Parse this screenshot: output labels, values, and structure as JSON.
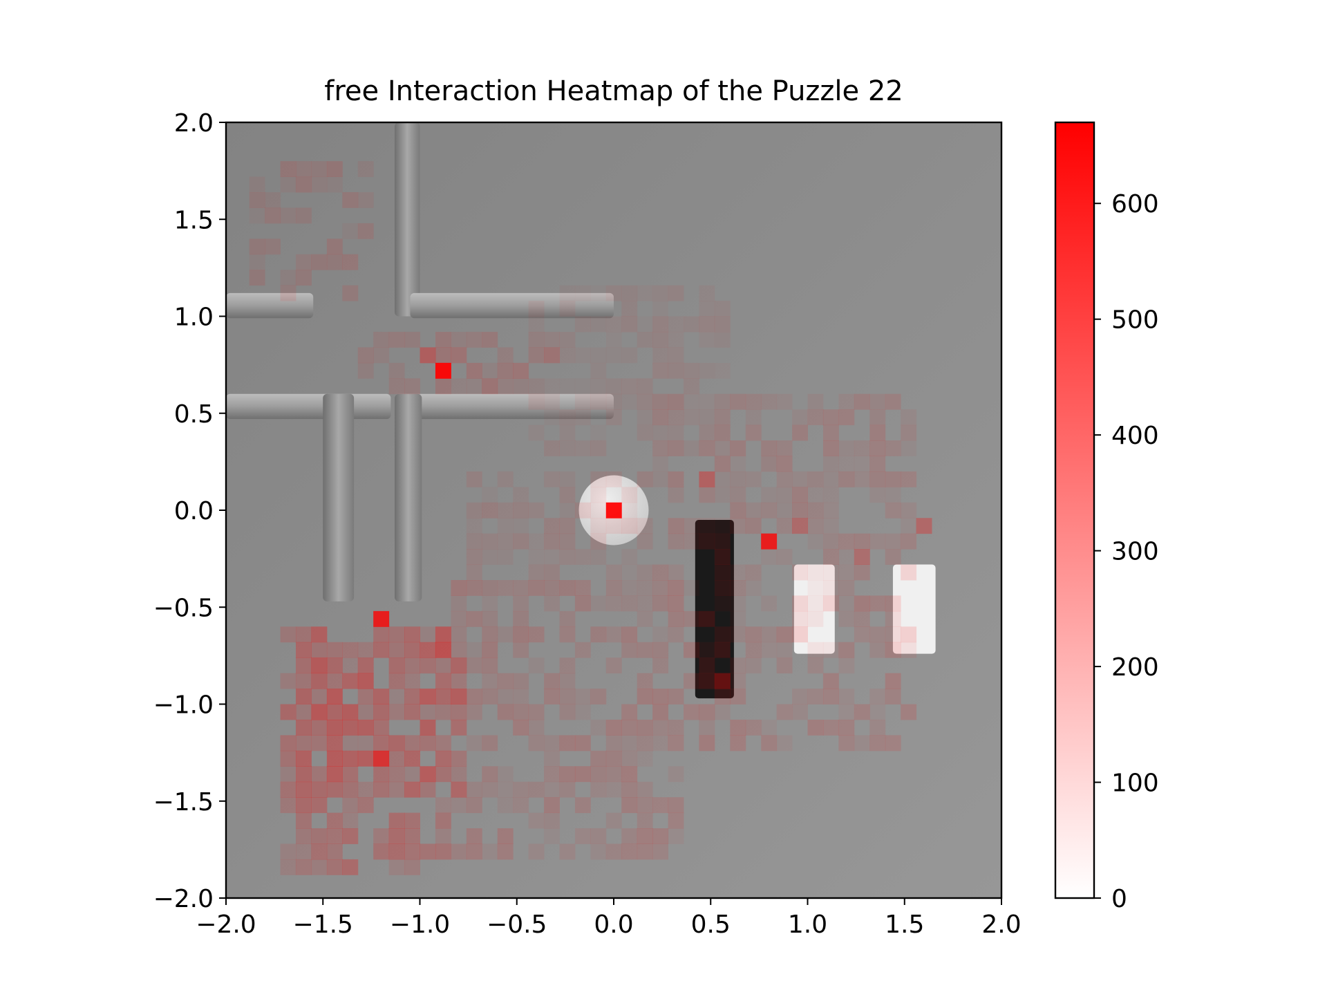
{
  "chart_data": {
    "type": "heatmap",
    "title": "free Interaction Heatmap of the Puzzle 22",
    "xlabel": "",
    "ylabel": "",
    "xlim": [
      -2.0,
      2.0
    ],
    "ylim": [
      -2.0,
      2.0
    ],
    "x_ticks": [
      "−2.0",
      "−1.5",
      "−1.0",
      "−0.5",
      "0.0",
      "0.5",
      "1.0",
      "1.5",
      "2.0"
    ],
    "y_ticks": [
      "2.0",
      "1.5",
      "1.0",
      "0.5",
      "0.0",
      "−0.5",
      "−1.0",
      "−1.5",
      "−2.0"
    ],
    "colorbar": {
      "range": [
        0,
        670
      ],
      "ticks": [
        "0",
        "100",
        "200",
        "300",
        "400",
        "500",
        "600"
      ],
      "colors": [
        "#ffffff",
        "#ff0000"
      ]
    },
    "grid": false,
    "cell_size": 0.08,
    "hotspots": [
      {
        "x": -0.88,
        "y": 0.72,
        "value": 660
      },
      {
        "x": 0.0,
        "y": 0.0,
        "value": 660
      },
      {
        "x": 0.79,
        "y": -0.16,
        "value": 560
      },
      {
        "x": -1.2,
        "y": -0.56,
        "value": 560
      },
      {
        "x": -1.2,
        "y": -1.28,
        "value": 450
      },
      {
        "x": -0.96,
        "y": 0.8,
        "value": 220
      },
      {
        "x": -0.88,
        "y": -0.72,
        "value": 300
      },
      {
        "x": -0.88,
        "y": -0.64,
        "value": 250
      },
      {
        "x": -1.52,
        "y": -0.64,
        "value": 220
      },
      {
        "x": -1.52,
        "y": -1.04,
        "value": 260
      },
      {
        "x": -1.44,
        "y": -1.28,
        "value": 240
      },
      {
        "x": 0.48,
        "y": 0.16,
        "value": 220
      },
      {
        "x": 1.6,
        "y": -0.08,
        "value": 200
      },
      {
        "x": 0.96,
        "y": -0.08,
        "value": 180
      },
      {
        "x": 1.28,
        "y": -0.24,
        "value": 170
      },
      {
        "x": 0.56,
        "y": -0.88,
        "value": 230
      }
    ],
    "regions": [
      {
        "x0": -1.68,
        "x1": -0.8,
        "y0": -1.84,
        "y1": -0.56,
        "density": 0.22
      },
      {
        "x0": -1.6,
        "x1": -0.72,
        "y0": -1.44,
        "y1": -0.64,
        "density": 0.3
      },
      {
        "x0": -0.8,
        "x1": 0.4,
        "y0": -1.76,
        "y1": -0.32,
        "density": 0.12
      },
      {
        "x0": 0.4,
        "x1": 1.6,
        "y0": -1.2,
        "y1": -0.4,
        "density": 0.12
      },
      {
        "x0": 0.24,
        "x1": 1.6,
        "y0": -0.4,
        "y1": 0.64,
        "density": 0.1
      },
      {
        "x0": -1.28,
        "x1": -0.24,
        "y0": 0.64,
        "y1": 0.96,
        "density": 0.14
      },
      {
        "x0": -1.84,
        "x1": -1.2,
        "y0": 1.12,
        "y1": 1.84,
        "density": 0.1
      },
      {
        "x0": -0.72,
        "x1": 0.24,
        "y0": -0.4,
        "y1": 0.24,
        "density": 0.08
      },
      {
        "x0": -0.4,
        "x1": 0.64,
        "y0": 0.32,
        "y1": 1.2,
        "density": 0.06
      }
    ],
    "scene_objects": [
      {
        "kind": "wall",
        "x0": -1.13,
        "x1": -1.0,
        "y0": 1.0,
        "y1": 2.0
      },
      {
        "kind": "wall",
        "x0": -2.0,
        "x1": -1.55,
        "y0": 0.99,
        "y1": 1.12
      },
      {
        "kind": "wall",
        "x0": -1.05,
        "x1": 0.0,
        "y0": 0.99,
        "y1": 1.12
      },
      {
        "kind": "wall",
        "x0": -2.0,
        "x1": -1.15,
        "y0": 0.47,
        "y1": 0.6
      },
      {
        "kind": "wall",
        "x0": -1.13,
        "x1": 0.0,
        "y0": 0.47,
        "y1": 0.6
      },
      {
        "kind": "wall",
        "x0": -1.5,
        "x1": -1.34,
        "y0": -0.47,
        "y1": 0.6
      },
      {
        "kind": "wall",
        "x0": -1.13,
        "x1": -0.99,
        "y0": -0.47,
        "y1": 0.6
      },
      {
        "kind": "disc",
        "x": 0.0,
        "y": 0.0,
        "r": 0.18,
        "color": "#e2e2e2"
      },
      {
        "kind": "block",
        "x0": 0.42,
        "x1": 0.62,
        "y0": -0.97,
        "y1": -0.05,
        "color": "#1a1a1a"
      },
      {
        "kind": "block",
        "x0": 0.93,
        "x1": 1.14,
        "y0": -0.74,
        "y1": -0.28,
        "color": "#f0f0f0"
      },
      {
        "kind": "block",
        "x0": 1.44,
        "x1": 1.66,
        "y0": -0.74,
        "y1": -0.28,
        "color": "#f0f0f0"
      }
    ]
  }
}
